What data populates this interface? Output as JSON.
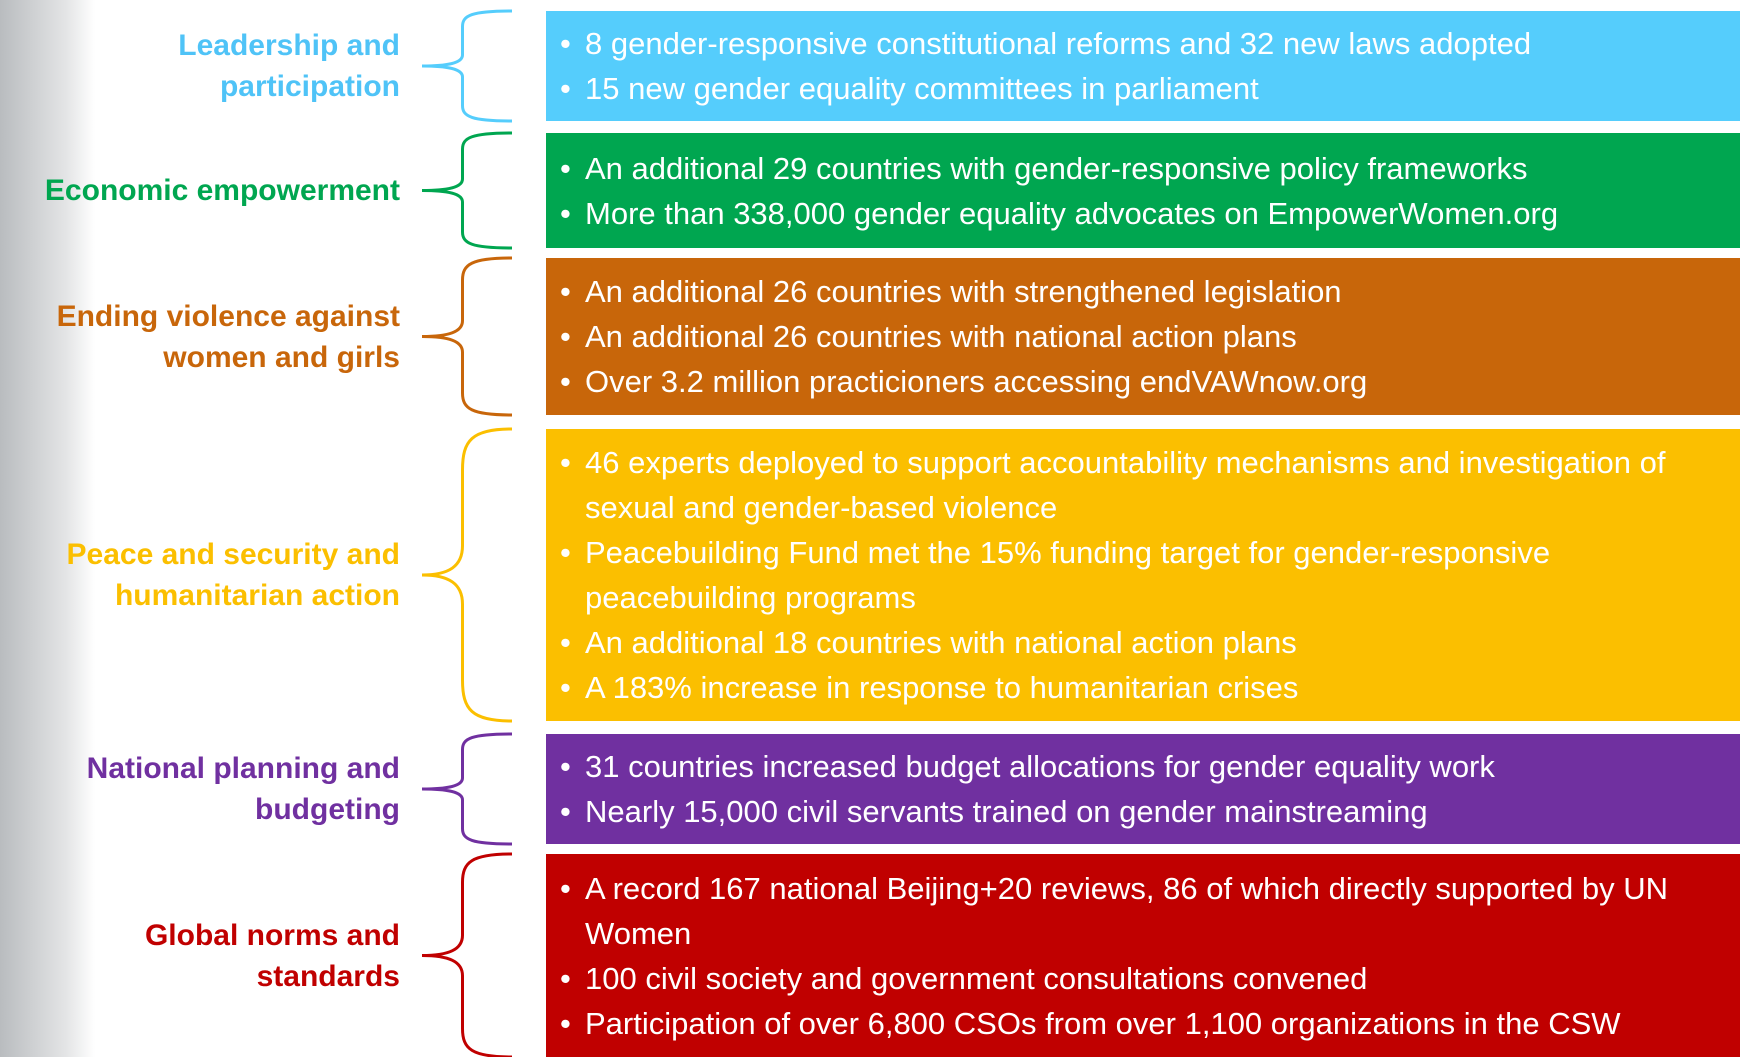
{
  "sections": [
    {
      "label": "Leadership and participation",
      "items": [
        "8 gender-responsive constitutional reforms and 32 new laws adopted",
        "15 new gender equality committees in parliament"
      ]
    },
    {
      "label": "Economic empowerment",
      "items": [
        "An additional 29 countries with gender-responsive policy frameworks",
        "More than 338,000 gender equality advocates on EmpowerWomen.org"
      ]
    },
    {
      "label": "Ending violence against women and girls",
      "items": [
        "An additional 26 countries with strengthened legislation",
        "An additional 26 countries with national action plans",
        "Over 3.2 million practicioners accessing endVAWnow.org"
      ]
    },
    {
      "label": "Peace and security and humanitarian action",
      "items": [
        "46 experts deployed to support accountability mechanisms and investigation of sexual and gender-based violence",
        "Peacebuilding Fund met the 15% funding target for gender-responsive peacebuilding programs",
        "An additional 18 countries with national action plans",
        "A 183% increase in response to humanitarian crises"
      ]
    },
    {
      "label": "National planning and budgeting",
      "items": [
        "31 countries increased budget allocations for gender equality work",
        "Nearly 15,000 civil servants trained on gender mainstreaming"
      ]
    },
    {
      "label": "Global norms and standards",
      "items": [
        "A record 167 national Beijing+20 reviews, 86 of which directly supported by UN Women",
        "100 civil society and government consultations convened",
        "Participation of over 6,800 CSOs from over 1,100 organizations in the CSW"
      ]
    }
  ]
}
